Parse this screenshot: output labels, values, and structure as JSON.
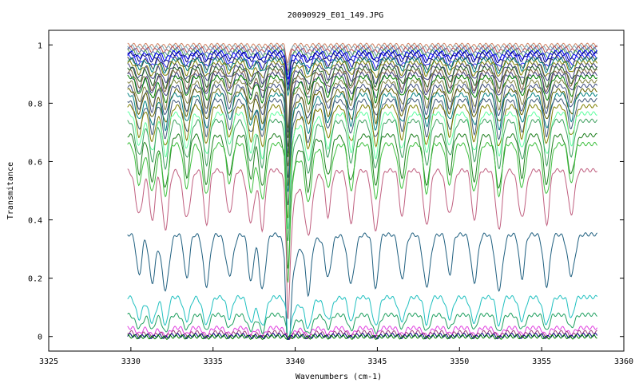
{
  "chart_data": {
    "type": "line",
    "title": "20090929_E01_149.JPG",
    "xlabel": "Wavenumbers (cm-1)",
    "ylabel": "Transmitance",
    "xlim": [
      3325,
      3360
    ],
    "ylim": [
      -0.05,
      1.05
    ],
    "x_ticks": [
      3325,
      3330,
      3335,
      3340,
      3345,
      3350,
      3355,
      3360
    ],
    "y_ticks": [
      0,
      0.2,
      0.4,
      0.6,
      0.8,
      1
    ],
    "x_tick_labels": [
      "3325",
      "3330",
      "3335",
      "3340",
      "3345",
      "3350",
      "3355",
      "3360"
    ],
    "y_tick_labels": [
      "0",
      "0.2",
      "0.4",
      "0.6",
      "0.8",
      "1"
    ],
    "x_range_of_series": [
      3329.8,
      3358.4
    ],
    "edge_step_at": 3339.5,
    "absorption_lines": [
      3330.5,
      3331.3,
      3332.1,
      3333.4,
      3334.6,
      3336.0,
      3337.3,
      3338.0,
      3339.6,
      3340.8,
      3342.0,
      3343.4,
      3344.9,
      3346.5,
      3348.0,
      3349.4,
      3350.9,
      3352.4,
      3353.8,
      3355.3,
      3356.8
    ],
    "grid": false,
    "legend": "none",
    "series": [
      {
        "baseline": 1.0,
        "color": "#d08060"
      },
      {
        "baseline": 0.995,
        "color": "#80b0c0"
      },
      {
        "baseline": 0.99,
        "color": "#c05050"
      },
      {
        "baseline": 0.985,
        "color": "#6080c0"
      },
      {
        "baseline": 0.98,
        "color": "#50a050"
      },
      {
        "baseline": 0.975,
        "color": "#0000ff"
      },
      {
        "baseline": 0.97,
        "color": "#000080"
      },
      {
        "baseline": 0.96,
        "color": "#2020ff"
      },
      {
        "baseline": 0.955,
        "color": "#404040"
      },
      {
        "baseline": 0.95,
        "color": "#008080"
      },
      {
        "baseline": 0.94,
        "color": "#808000"
      },
      {
        "baseline": 0.93,
        "color": "#404080"
      },
      {
        "baseline": 0.92,
        "color": "#206020"
      },
      {
        "baseline": 0.91,
        "color": "#806040"
      },
      {
        "baseline": 0.9,
        "color": "#404080"
      },
      {
        "baseline": 0.89,
        "color": "#008000"
      },
      {
        "baseline": 0.875,
        "color": "#808040"
      },
      {
        "baseline": 0.86,
        "color": "#405080"
      },
      {
        "baseline": 0.845,
        "color": "#606000"
      },
      {
        "baseline": 0.83,
        "color": "#008080"
      },
      {
        "baseline": 0.81,
        "color": "#405878"
      },
      {
        "baseline": 0.79,
        "color": "#808000"
      },
      {
        "baseline": 0.765,
        "color": "#60ffa0"
      },
      {
        "baseline": 0.74,
        "color": "#40a060"
      },
      {
        "baseline": 0.69,
        "color": "#208020"
      },
      {
        "baseline": 0.66,
        "color": "#40c040"
      },
      {
        "baseline": 0.57,
        "color": "#c06080"
      },
      {
        "baseline": 0.35,
        "color": "#206080"
      },
      {
        "baseline": 0.135,
        "color": "#20c0c0"
      },
      {
        "baseline": 0.075,
        "color": "#20a060"
      },
      {
        "baseline": 0.03,
        "color": "#e040e0"
      },
      {
        "baseline": 0.015,
        "color": "#a04080"
      },
      {
        "baseline": 0.005,
        "color": "#000080"
      },
      {
        "baseline": 0.0,
        "color": "#008000"
      }
    ]
  }
}
